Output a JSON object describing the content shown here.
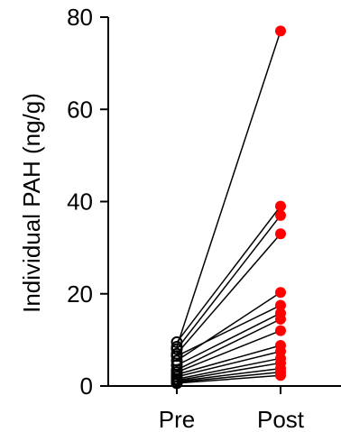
{
  "chart_data": {
    "type": "scatter",
    "title": "",
    "ylabel": "Individual PAH (ng/g)",
    "xlabel": "",
    "categories": [
      "Pre",
      "Post"
    ],
    "ylim": [
      0,
      80
    ],
    "yticks": [
      0,
      20,
      40,
      60,
      80
    ],
    "grid": false,
    "legend": "none",
    "series": [
      {
        "values": [
          8.5,
          77
        ],
        "marker_pre": "open-circle",
        "marker_post": "filled-circle"
      },
      {
        "values": [
          9.5,
          39
        ],
        "marker_pre": "open-circle",
        "marker_post": "filled-circle"
      },
      {
        "values": [
          8.0,
          37
        ],
        "marker_pre": "open-circle",
        "marker_post": "filled-circle"
      },
      {
        "values": [
          7.0,
          33
        ],
        "marker_pre": "open-circle",
        "marker_post": "filled-circle"
      },
      {
        "values": [
          5.5,
          20.3
        ],
        "marker_pre": "open-circle",
        "marker_post": "filled-circle"
      },
      {
        "values": [
          6.5,
          17.5
        ],
        "marker_pre": "open-circle",
        "marker_post": "filled-circle"
      },
      {
        "values": [
          4.5,
          15.8
        ],
        "marker_pre": "open-circle",
        "marker_post": "filled-circle"
      },
      {
        "values": [
          3.5,
          14.5
        ],
        "marker_pre": "open-circle",
        "marker_post": "filled-circle"
      },
      {
        "values": [
          3.0,
          12.0
        ],
        "marker_pre": "open-circle",
        "marker_post": "filled-circle"
      },
      {
        "values": [
          2.5,
          8.8
        ],
        "marker_pre": "open-circle",
        "marker_post": "filled-circle"
      },
      {
        "values": [
          2.0,
          7.5
        ],
        "marker_pre": "open-circle",
        "marker_post": "filled-circle"
      },
      {
        "values": [
          1.5,
          6.0
        ],
        "marker_pre": "open-circle",
        "marker_post": "filled-circle"
      },
      {
        "values": [
          1.2,
          5.0
        ],
        "marker_pre": "open-circle",
        "marker_post": "filled-circle"
      },
      {
        "values": [
          1.0,
          3.8
        ],
        "marker_pre": "open-circle",
        "marker_post": "filled-circle"
      },
      {
        "values": [
          0.8,
          3.0
        ],
        "marker_pre": "open-circle",
        "marker_post": "filled-circle"
      },
      {
        "values": [
          0.6,
          2.3
        ],
        "marker_pre": "open-circle",
        "marker_post": "filled-circle"
      }
    ],
    "colors": {
      "pre_marker": "#000000",
      "post_marker": "#ff0000",
      "lines": "#000000"
    }
  }
}
